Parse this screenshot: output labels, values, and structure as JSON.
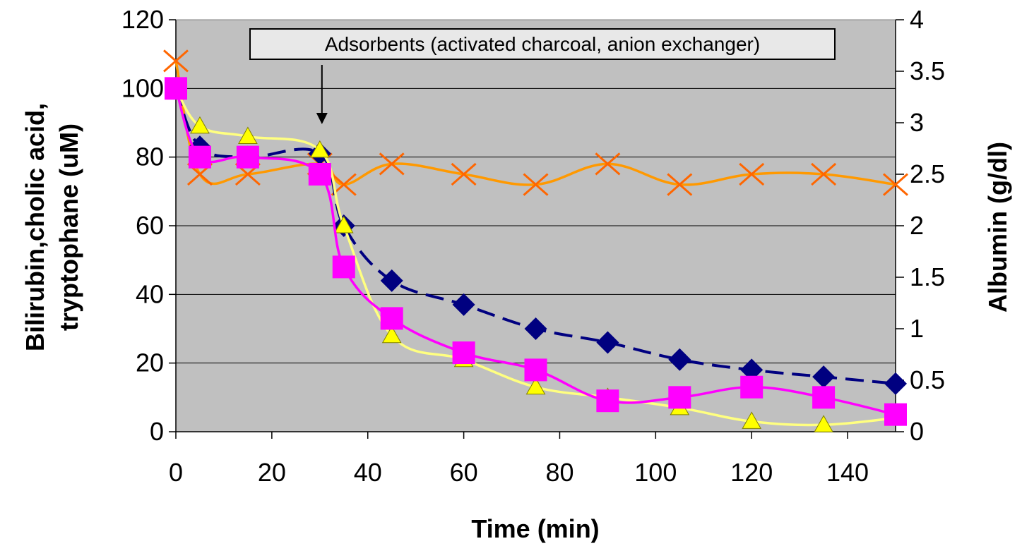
{
  "chart_data": {
    "type": "line",
    "xlabel": "Time (min)",
    "ylabel_line1": "Bilirubin,cholic acid,",
    "ylabel_line2": "tryptophane (uM)",
    "y2label": "Albumin (g/dl)",
    "xlim": [
      0,
      150
    ],
    "ylim": [
      0,
      120
    ],
    "y2lim": [
      0,
      4
    ],
    "x_ticks": [
      "0",
      "20",
      "40",
      "60",
      "80",
      "100",
      "120",
      "140"
    ],
    "y_ticks": [
      "0",
      "20",
      "40",
      "60",
      "80",
      "100",
      "120"
    ],
    "y2_ticks": [
      "0",
      "0.5",
      "1",
      "1.5",
      "2",
      "2.5",
      "3",
      "3.5",
      "4"
    ],
    "grid": "horizontal",
    "plot_background": "#c0c0c0",
    "annotation": {
      "text": "Adsorbents (activated charcoal, anion exchanger)",
      "x": 30
    },
    "series": [
      {
        "axis": "left",
        "color": "#000080",
        "line_style": "dashed",
        "marker": "diamond",
        "x": [
          0,
          5,
          15,
          30,
          35,
          45,
          60,
          75,
          90,
          105,
          120,
          135,
          150
        ],
        "values": [
          100,
          83,
          80,
          81,
          60,
          44,
          37,
          30,
          26,
          21,
          18,
          16,
          14
        ]
      },
      {
        "axis": "left",
        "color": "#ff00ff",
        "line_style": "solid",
        "marker": "square",
        "x": [
          0,
          5,
          15,
          30,
          35,
          45,
          60,
          75,
          90,
          105,
          120,
          135,
          150
        ],
        "values": [
          100,
          80,
          80,
          75,
          48,
          33,
          23,
          18,
          9,
          10,
          13,
          10,
          5
        ]
      },
      {
        "axis": "left",
        "color": "#ffff80",
        "line_style": "solid",
        "marker": "triangle",
        "x": [
          0,
          5,
          15,
          30,
          35,
          45,
          60,
          75,
          90,
          105,
          120,
          135,
          150
        ],
        "values": [
          100,
          89,
          86,
          82,
          60,
          28,
          21,
          13,
          10,
          7,
          3,
          2,
          4
        ]
      },
      {
        "axis": "right",
        "color": "#ff9900",
        "line_style": "solid",
        "marker": "x",
        "x": [
          0,
          5,
          15,
          30,
          35,
          45,
          60,
          75,
          90,
          105,
          120,
          135,
          150
        ],
        "values": [
          3.6,
          2.5,
          2.5,
          2.6,
          2.4,
          2.6,
          2.5,
          2.4,
          2.6,
          2.4,
          2.5,
          2.5,
          2.4
        ]
      }
    ]
  }
}
